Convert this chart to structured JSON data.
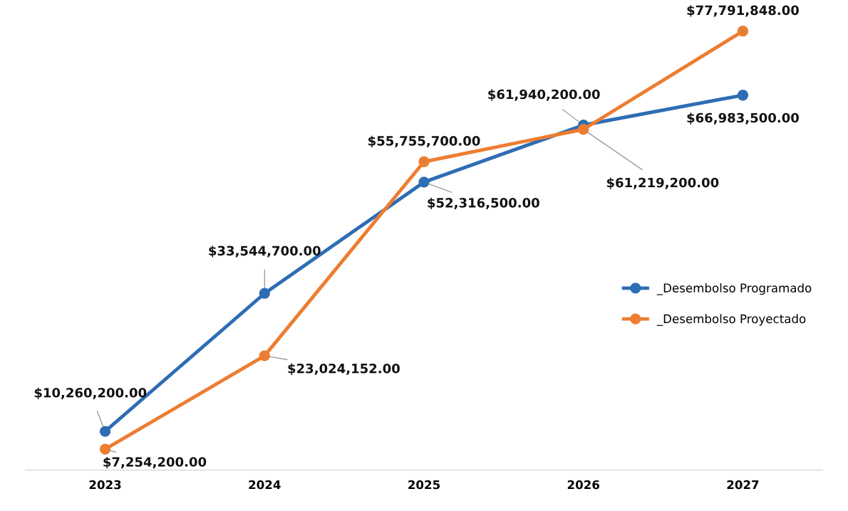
{
  "chart_data": {
    "type": "line",
    "categories": [
      "2023",
      "2024",
      "2025",
      "2026",
      "2027"
    ],
    "series": [
      {
        "name": "_Desembolso Programado",
        "color": "#2e6db4",
        "values": [
          10260200,
          33544700,
          52316500,
          61940200,
          66983500
        ],
        "value_labels": [
          "$10,260,200.00",
          "$33,544,700.00",
          "$52,316,500.00",
          "$61,940,200.00",
          "$66,983,500.00"
        ]
      },
      {
        "name": "_Desembolso Proyectado",
        "color": "#ed7d31",
        "values": [
          7254200,
          23024152,
          55755700,
          61219200,
          77791848
        ],
        "value_labels": [
          "$7,254,200.00",
          "$23,024,152.00",
          "$55,755,700.00",
          "$61,219,200.00",
          "$77,791,848.00"
        ]
      }
    ],
    "tick_labels": "x",
    "grid": false,
    "legend": "right",
    "marker": "circle",
    "line_style": "solid"
  }
}
